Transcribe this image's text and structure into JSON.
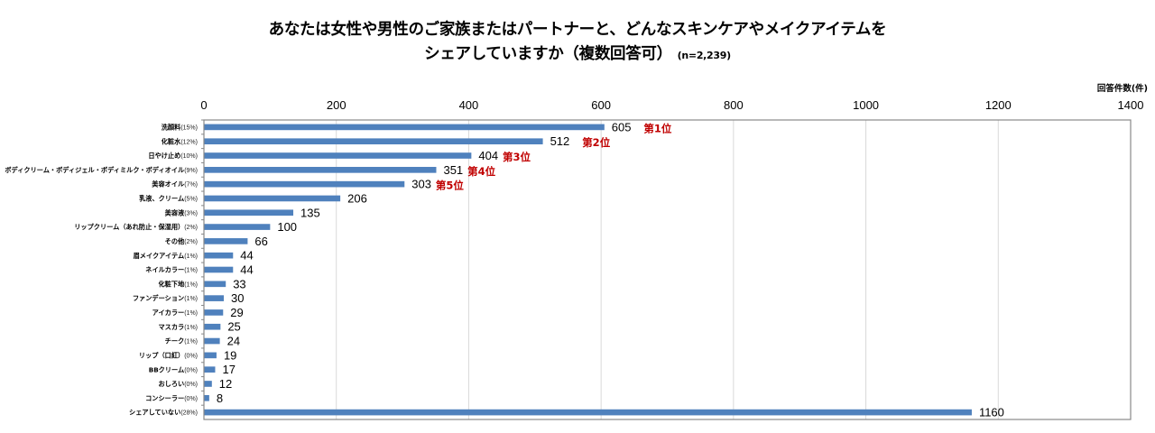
{
  "title": {
    "line1": "あなたは女性や男性のご家族またはパートナーと、どんなスキンケアやメイクアイテムを",
    "line2": "シェアしていますか（複数回答可）",
    "sample": "(n=2,239)"
  },
  "chart_data": {
    "type": "bar",
    "orientation": "horizontal",
    "title": "あなたは女性や男性のご家族またはパートナーと、どんなスキンケアやメイクアイテムをシェアしていますか（複数回答可）(n=2,239)",
    "xlabel": "回答件数(件)",
    "ylabel": "",
    "xlim": [
      0,
      1400
    ],
    "xticks": [
      0,
      200,
      400,
      600,
      800,
      1000,
      1200,
      1400
    ],
    "grid": true,
    "legend": "none",
    "bar_color": "#4f81bd",
    "rank_color": "#c00000",
    "categories": [
      {
        "name": "洗顔料",
        "pct": "(15%)"
      },
      {
        "name": "化粧水",
        "pct": "(12%)"
      },
      {
        "name": "日やけ止め",
        "pct": "(10%)"
      },
      {
        "name": "ボディクリーム・ボディジェル・ボディミルク・ボディオイル",
        "pct": "(9%)"
      },
      {
        "name": "美容オイル",
        "pct": "(7%)"
      },
      {
        "name": "乳液、クリーム",
        "pct": "(5%)"
      },
      {
        "name": "美容液",
        "pct": "(3%)"
      },
      {
        "name": "リップクリーム（あれ防止・保湿用）",
        "pct": "(2%)"
      },
      {
        "name": "その他",
        "pct": "(2%)"
      },
      {
        "name": "眉メイクアイテム",
        "pct": "(1%)"
      },
      {
        "name": "ネイルカラー",
        "pct": "(1%)"
      },
      {
        "name": "化粧下地",
        "pct": "(1%)"
      },
      {
        "name": "ファンデーション",
        "pct": "(1%)"
      },
      {
        "name": "アイカラー",
        "pct": "(1%)"
      },
      {
        "name": "マスカラ",
        "pct": "(1%)"
      },
      {
        "name": "チーク",
        "pct": "(1%)"
      },
      {
        "name": "リップ（口紅）",
        "pct": "(0%)"
      },
      {
        "name": "BBクリーム",
        "pct": "(0%)"
      },
      {
        "name": "おしろい",
        "pct": "(0%)"
      },
      {
        "name": "コンシーラー",
        "pct": "(0%)"
      },
      {
        "name": "シェアしていない",
        "pct": "(28%)"
      }
    ],
    "values": [
      605,
      512,
      404,
      351,
      303,
      206,
      135,
      100,
      66,
      44,
      44,
      33,
      30,
      29,
      25,
      24,
      19,
      17,
      12,
      8,
      1160
    ],
    "annotations": [
      "第1位",
      "第2位",
      "第3位",
      "第4位",
      "第5位",
      "",
      "",
      "",
      "",
      "",
      "",
      "",
      "",
      "",
      "",
      "",
      "",
      "",
      "",
      "",
      ""
    ]
  }
}
